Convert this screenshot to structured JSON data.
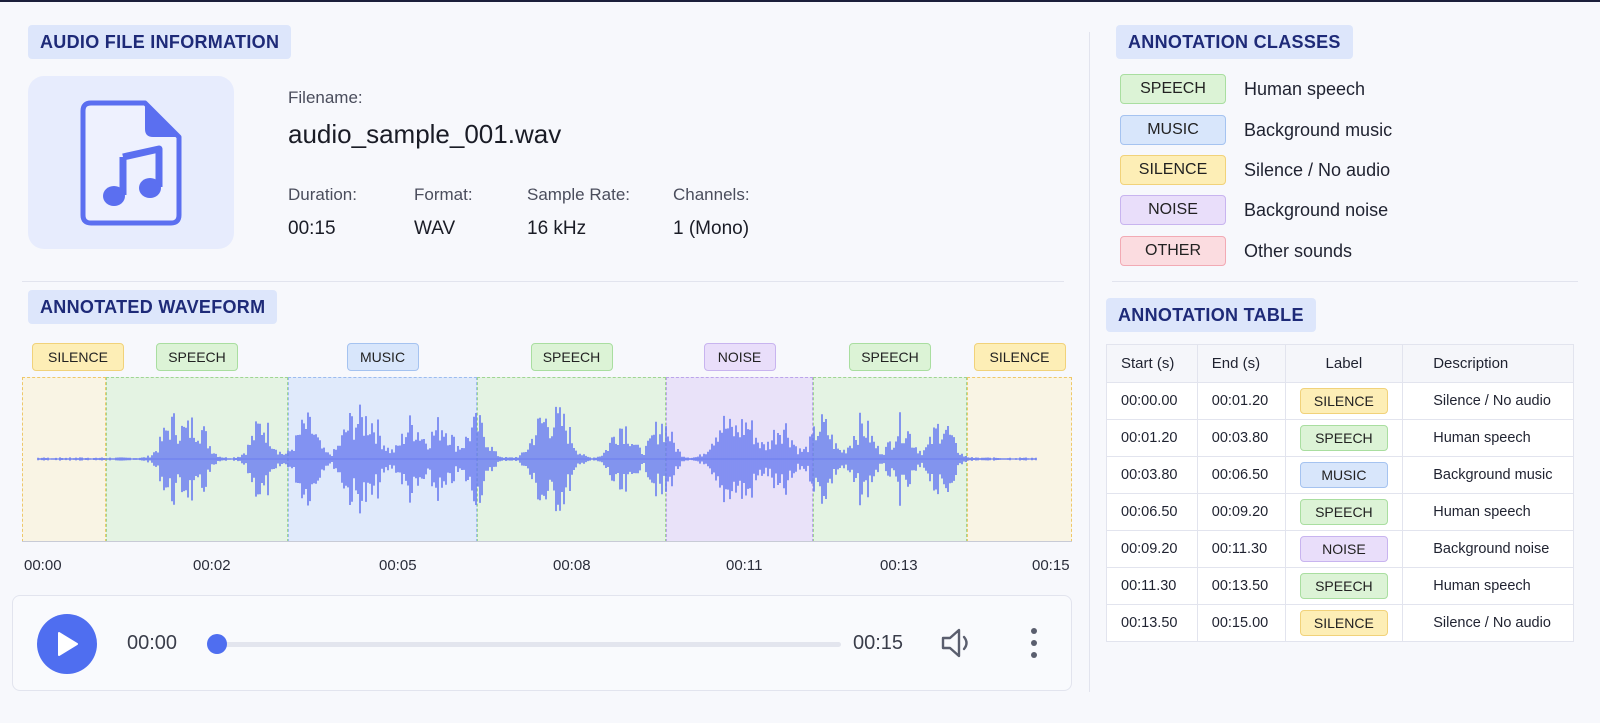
{
  "file_info": {
    "title": "AUDIO FILE INFORMATION",
    "filename_label": "Filename:",
    "filename": "audio_sample_001.wav",
    "duration_label": "Duration:",
    "duration": "00:15",
    "format_label": "Format:",
    "format": "WAV",
    "sample_rate_label": "Sample Rate:",
    "sample_rate": "16 kHz",
    "channels_label": "Channels:",
    "channels": "1 (Mono)",
    "icon": "audio-file-icon"
  },
  "classes": {
    "title": "ANNOTATION CLASSES",
    "items": [
      {
        "label": "SPEECH",
        "desc": "Human speech",
        "color": "#dcf3d6"
      },
      {
        "label": "MUSIC",
        "desc": "Background music",
        "color": "#d8e6fb"
      },
      {
        "label": "SILENCE",
        "desc": "Silence / No audio",
        "color": "#fdeeb6"
      },
      {
        "label": "NOISE",
        "desc": "Background noise",
        "color": "#e9defa"
      },
      {
        "label": "OTHER",
        "desc": "Other sounds",
        "color": "#fbdce0"
      }
    ]
  },
  "waveform": {
    "title": "ANNOTATED WAVEFORM",
    "segments": [
      {
        "label": "SILENCE",
        "start": 0.0,
        "end": 1.2
      },
      {
        "label": "SPEECH",
        "start": 1.2,
        "end": 3.8
      },
      {
        "label": "MUSIC",
        "start": 3.8,
        "end": 6.5
      },
      {
        "label": "SPEECH",
        "start": 6.5,
        "end": 9.2
      },
      {
        "label": "NOISE",
        "start": 9.2,
        "end": 11.3
      },
      {
        "label": "SPEECH",
        "start": 11.3,
        "end": 13.5
      },
      {
        "label": "SILENCE",
        "start": 13.5,
        "end": 15.0
      }
    ],
    "ticks": [
      "00:00",
      "00:02",
      "00:05",
      "00:08",
      "00:11",
      "00:13",
      "00:15"
    ],
    "wave_color": "#6a7cf0"
  },
  "player": {
    "current_time": "00:00",
    "total_time": "00:15",
    "progress": 0.0,
    "play_icon": "play-icon",
    "volume_icon": "volume-icon",
    "more_icon": "more-vertical-icon"
  },
  "table": {
    "title": "ANNOTATION TABLE",
    "headers": [
      "Start (s)",
      "End (s)",
      "Label",
      "Description"
    ],
    "rows": [
      {
        "start": "00:00.00",
        "end": "00:01.20",
        "label": "SILENCE",
        "desc": "Silence / No audio"
      },
      {
        "start": "00:01.20",
        "end": "00:03.80",
        "label": "SPEECH",
        "desc": "Human speech"
      },
      {
        "start": "00:03.80",
        "end": "00:06.50",
        "label": "MUSIC",
        "desc": "Background music"
      },
      {
        "start": "00:06.50",
        "end": "00:09.20",
        "label": "SPEECH",
        "desc": "Human speech"
      },
      {
        "start": "00:09.20",
        "end": "00:11.30",
        "label": "NOISE",
        "desc": "Background noise"
      },
      {
        "start": "00:11.30",
        "end": "00:13.50",
        "label": "SPEECH",
        "desc": "Human speech"
      },
      {
        "start": "00:13.50",
        "end": "00:15.00",
        "label": "SILENCE",
        "desc": "Silence / No audio"
      }
    ]
  }
}
